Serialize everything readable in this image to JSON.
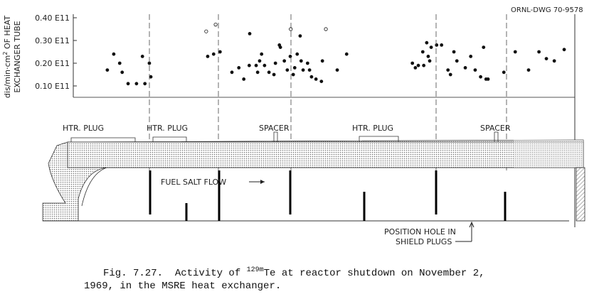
{
  "drawing_number": "ORNL-DWG 70-9578",
  "chart_data": {
    "type": "scatter",
    "ylabel": {
      "line1": "dis/min·cm",
      "sup": "2",
      "line1_end": " OF HEAT",
      "line2": "EXCHANGER TUBE"
    },
    "xlim": [
      0,
      100
    ],
    "ylim": [
      0.05,
      0.4
    ],
    "yticks": [
      {
        "value": 0.1,
        "label": "0.10 E11"
      },
      {
        "value": 0.2,
        "label": "0.20 E11"
      },
      {
        "value": 0.3,
        "label": "0.30 E11"
      },
      {
        "value": 0.4,
        "label": "0.40 E11"
      }
    ],
    "color": "#111111",
    "x": [
      6.6,
      7.9,
      9.1,
      9.6,
      10.8,
      12.5,
      13.7,
      14.2,
      15.1,
      15.4,
      26.9,
      28.1,
      29.4,
      31.8,
      33.2,
      34.2,
      35.3,
      35.4,
      36.7,
      37.0,
      37.4,
      37.8,
      38.4,
      39.3,
      40.3,
      40.6,
      41.4,
      41.6,
      42.4,
      43.0,
      43.6,
      44.2,
      44.5,
      45.0,
      45.6,
      45.8,
      46.2,
      47.1,
      47.5,
      47.9,
      48.8,
      49.9,
      50.1,
      53.1,
      55.0,
      68.3,
      68.9,
      69.5,
      70.4,
      70.6,
      71.2,
      71.5,
      71.8,
      72.1,
      73.2,
      74.2,
      75.5,
      76.0,
      76.7,
      77.3,
      79.0,
      80.1,
      81.0,
      82.1,
      82.7,
      83.2,
      83.6,
      86.8,
      89.1,
      91.8,
      93.9,
      95.4,
      97.0,
      99.0
    ],
    "values": [
      0.17,
      0.24,
      0.2,
      0.16,
      0.11,
      0.11,
      0.23,
      0.11,
      0.2,
      0.14,
      0.23,
      0.24,
      0.25,
      0.16,
      0.18,
      0.13,
      0.19,
      0.33,
      0.19,
      0.16,
      0.21,
      0.24,
      0.19,
      0.16,
      0.15,
      0.2,
      0.28,
      0.27,
      0.21,
      0.17,
      0.23,
      0.15,
      0.18,
      0.24,
      0.32,
      0.21,
      0.17,
      0.2,
      0.17,
      0.14,
      0.13,
      0.12,
      0.21,
      0.17,
      0.24,
      0.2,
      0.18,
      0.19,
      0.25,
      0.19,
      0.29,
      0.23,
      0.21,
      0.27,
      0.28,
      0.28,
      0.17,
      0.15,
      0.25,
      0.21,
      0.18,
      0.23,
      0.17,
      0.14,
      0.27,
      0.13,
      0.13,
      0.16,
      0.25,
      0.17,
      0.25,
      0.22,
      0.21,
      0.26
    ],
    "open_x": [
      26.6,
      28.5,
      43.7,
      50.8
    ],
    "open_values": [
      0.34,
      0.37,
      0.35,
      0.35
    ]
  },
  "diagram": {
    "labels": [
      "HTR. PLUG",
      "HTR. PLUG",
      "SPACER",
      "HTR. PLUG",
      "SPACER"
    ],
    "flow": "FUEL SALT FLOW",
    "position_hole": [
      "POSITION HOLE IN",
      "SHIELD PLUGS"
    ]
  },
  "caption": {
    "line1_start": "Fig. 7.27.  Activity of ",
    "isotope_sup": "129m",
    "line1_end": "Te at reactor shutdown on November 2,",
    "line2": "1969, in the MSRE heat exchanger."
  }
}
